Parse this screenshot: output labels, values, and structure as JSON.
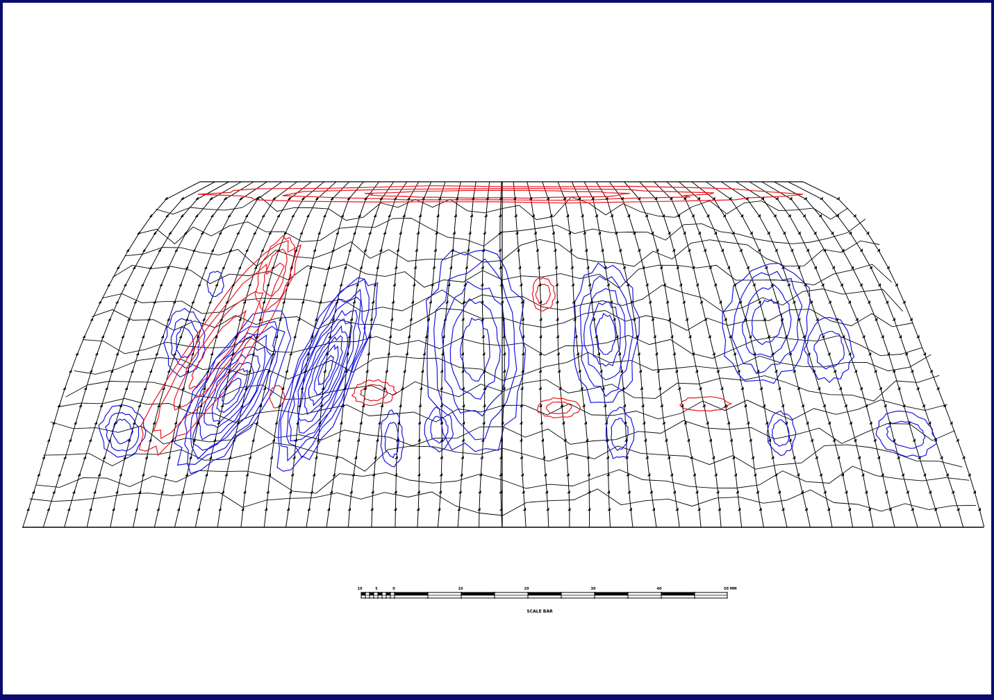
{
  "colors": {
    "border": "#0b0b6e",
    "background": "#ffffff",
    "grid_lines": "#000000",
    "positive_contour": "#e8141c",
    "negative_contour": "#1414e0"
  },
  "scale_bar": {
    "tick_labels": [
      "10",
      "5",
      "0",
      "10",
      "20",
      "30",
      "40",
      "50 MM"
    ],
    "title": "SCALE BAR"
  }
}
